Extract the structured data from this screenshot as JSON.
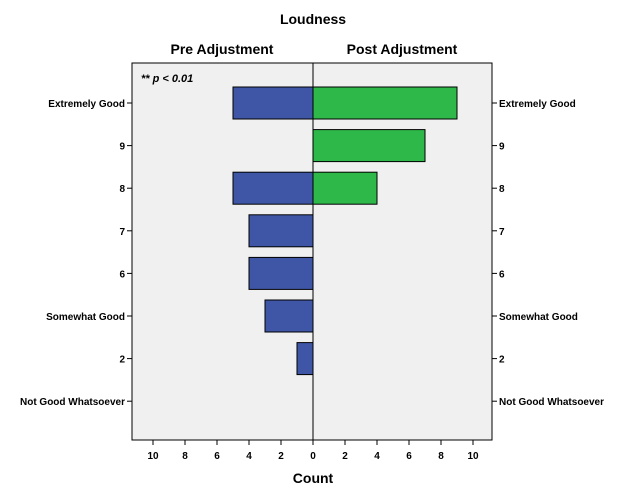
{
  "chart_data": {
    "type": "bar",
    "orientation": "horizontal-population-pyramid",
    "title": "Loudness",
    "xlabel": "Count",
    "annotation": "** p < 0.01",
    "categories": [
      "Extremely Good",
      "9",
      "8",
      "7",
      "6",
      "Somewhat Good",
      "2",
      "Not Good Whatsoever"
    ],
    "xlim": [
      0,
      10
    ],
    "x_ticks": [
      0,
      2,
      4,
      6,
      8,
      10
    ],
    "grid": false,
    "series": [
      {
        "name": "Pre Adjustment",
        "side": "left",
        "color": "#3f56a7",
        "values": [
          5,
          0,
          5,
          4,
          4,
          3,
          1,
          0
        ]
      },
      {
        "name": "Post Adjustment",
        "side": "right",
        "color": "#2fb84a",
        "values": [
          9,
          7,
          4,
          0,
          0,
          0,
          0,
          0
        ]
      }
    ],
    "plot_background": "#f0f0f0"
  }
}
